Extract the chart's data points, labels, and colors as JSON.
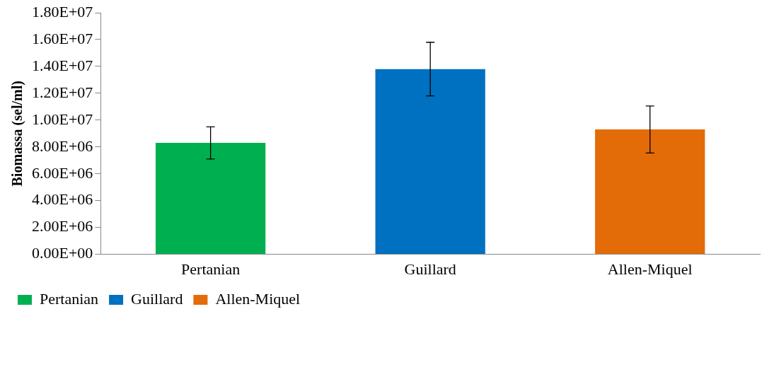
{
  "chart_data": {
    "type": "bar",
    "ylabel": "Biomassa (sel/ml)",
    "categories": [
      "Pertanian",
      "Guillard",
      "Allen-Miquel"
    ],
    "series": [
      {
        "name": "Pertanian",
        "color": "#00b050",
        "values": [
          8300000,
          null,
          null
        ],
        "errors": [
          1200000,
          null,
          null
        ]
      },
      {
        "name": "Guillard",
        "color": "#0070c0",
        "values": [
          null,
          13800000,
          null
        ],
        "errors": [
          null,
          2000000,
          null
        ]
      },
      {
        "name": "Allen-Miquel",
        "color": "#e36c09",
        "values": [
          null,
          null,
          9300000
        ],
        "errors": [
          null,
          null,
          1750000
        ]
      }
    ],
    "ylim": [
      0,
      18000000
    ],
    "yticks": [
      {
        "value": 0,
        "label": "0.00E+00"
      },
      {
        "value": 2000000,
        "label": "2.00E+06"
      },
      {
        "value": 4000000,
        "label": "4.00E+06"
      },
      {
        "value": 6000000,
        "label": "6.00E+06"
      },
      {
        "value": 8000000,
        "label": "8.00E+06"
      },
      {
        "value": 10000000,
        "label": "1.00E+07"
      },
      {
        "value": 12000000,
        "label": "1.20E+07"
      },
      {
        "value": 14000000,
        "label": "1.40E+07"
      },
      {
        "value": 16000000,
        "label": "1.60E+07"
      },
      {
        "value": 18000000,
        "label": "1.80E+07"
      }
    ],
    "grid": false,
    "legend": "bottom left"
  }
}
